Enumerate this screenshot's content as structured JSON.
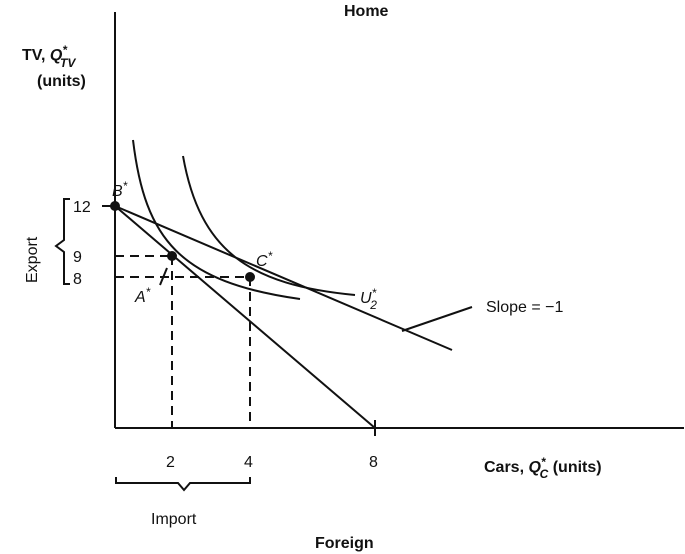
{
  "top_title": "Home",
  "bottom_title": "Foreign",
  "y_axis": {
    "label_line1": "TV, ",
    "symbol": "Q",
    "sup": "*",
    "sub": "TV",
    "label_line2": "(units)"
  },
  "x_axis": {
    "label_prefix": "Cars",
    "label_sep": ", ",
    "symbol": "Q",
    "sup": "*",
    "sub": "C",
    "label_suffix": " (units)"
  },
  "x_ticks": [
    "2",
    "4",
    "8"
  ],
  "y_ticks": [
    "12",
    "9",
    "8"
  ],
  "points": {
    "b_star": {
      "letter": "B",
      "sup": "*"
    },
    "a_star": {
      "letter": "A",
      "sup": "*"
    },
    "c_star": {
      "letter": "C",
      "sup": "*"
    }
  },
  "curve_label": {
    "letter": "U",
    "sup": "*",
    "sub": "2"
  },
  "slope_label": "Slope = −1",
  "export_label": "Export",
  "import_label": "Import"
}
